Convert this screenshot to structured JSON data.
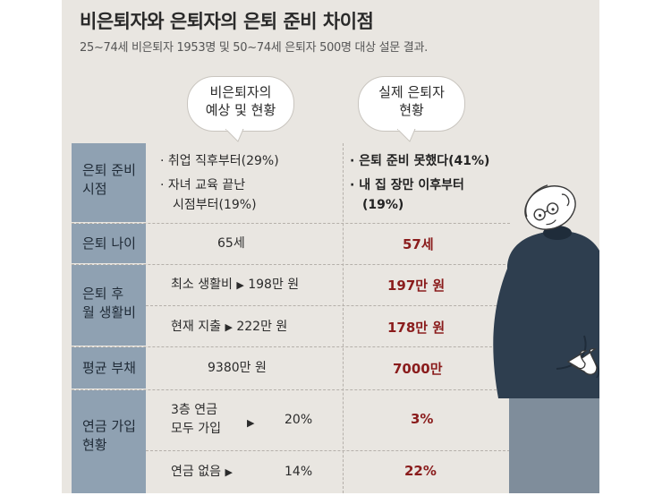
{
  "title": "비은퇴자와 은퇴자의 은퇴 준비 차이점",
  "subtitle": "25~74세 비은퇴자 1953명 및 50~74세 은퇴자 500명 대상 설문 결과.",
  "headers": {
    "expected_line1": "비은퇴자의",
    "expected_line2": "예상 및 현황",
    "actual_line1": "실제 은퇴자",
    "actual_line2": "현황"
  },
  "rows": {
    "prep_time": {
      "label_line1": "은퇴 준비",
      "label_line2": "시점",
      "expected_item1": "· 취업 직후부터(29%)",
      "expected_item2_line1": "· 자녀 교육 끝난",
      "expected_item2_line2": "시점부터(19%)",
      "actual_item1": "· 은퇴 준비 못했다(41%)",
      "actual_item2_line1": "· 내 집 장만 이후부터",
      "actual_item2_line2": "(19%)"
    },
    "retire_age": {
      "label": "은퇴 나이",
      "expected": "65세",
      "actual": "57세"
    },
    "living_cost": {
      "label_line1": "은퇴 후",
      "label_line2": "월 생활비",
      "min_label": "최소 생활비",
      "min_value": "198만 원",
      "min_actual": "197만 원",
      "cur_label": "현재 지출",
      "cur_value": "222만 원",
      "cur_actual": "178만 원"
    },
    "debt": {
      "label": "평균 부채",
      "expected": "9380만 원",
      "actual": "7000만"
    },
    "pension": {
      "label_line1": "연금 가입",
      "label_line2": "현황",
      "all_label_line1": "3층 연금",
      "all_label_line2": "모두 가입",
      "all_value": "20%",
      "all_actual": "3%",
      "none_label": "연금 없음",
      "none_value": "14%",
      "none_actual": "22%"
    }
  },
  "triangle_glyph": "▶",
  "colors": {
    "panel_bg": "#e9e6e1",
    "label_column": "#8fa1b2",
    "actual_text": "#8a1c1c",
    "figure_sweater": "#2e3e4f",
    "figure_pants": "#7f8d9b"
  }
}
